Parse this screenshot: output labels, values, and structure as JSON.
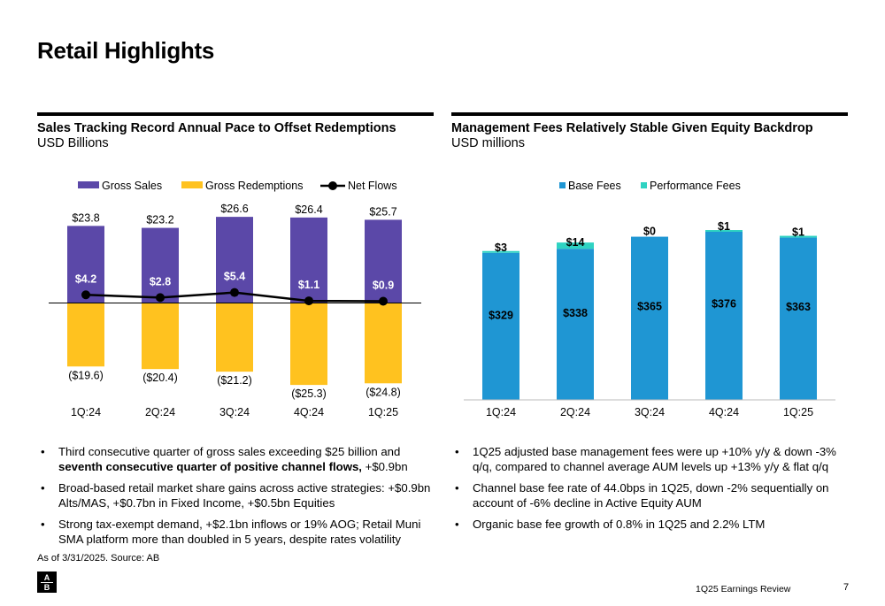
{
  "page_title": "Retail Highlights",
  "left_panel": {
    "title": "Sales Tracking Record Annual Pace to Offset Redemptions",
    "subtitle": "USD Billions",
    "bullets": [
      {
        "text": "Third consecutive quarter of gross sales exceeding $25 billion and ",
        "bold": "seventh consecutive quarter of positive channel flows,",
        "after": " +$0.9bn"
      },
      {
        "text": "Broad-based retail market share gains across active strategies: +$0.9bn Alts/MAS, +$0.7bn in Fixed Income, +$0.5bn Equities",
        "bold": "",
        "after": ""
      },
      {
        "text": "Strong tax-exempt demand, +$2.1bn inflows or 19% AOG; Retail Muni SMA platform more than doubled in 5 years, despite rates volatility",
        "bold": "",
        "after": ""
      }
    ]
  },
  "right_panel": {
    "title": "Management Fees Relatively Stable Given Equity Backdrop",
    "subtitle": "USD millions",
    "bullets": [
      {
        "text": "1Q25 adjusted base management fees were up +10% y/y & down -3% q/q, compared to channel average AUM levels up +13% y/y & flat q/q",
        "bold": "",
        "after": ""
      },
      {
        "text": "Channel base fee rate of 44.0bps in 1Q25, down -2% sequentially on account of -6% decline in Active Equity AUM",
        "bold": "",
        "after": ""
      },
      {
        "text": "Organic base fee growth of 0.8% in 1Q25 and 2.2% LTM",
        "bold": "",
        "after": ""
      }
    ]
  },
  "chart_data": [
    {
      "type": "bar",
      "categories": [
        "1Q:24",
        "2Q:24",
        "3Q:24",
        "4Q:24",
        "1Q:25"
      ],
      "series": [
        {
          "name": "Gross Sales",
          "values": [
            23.8,
            23.2,
            26.6,
            26.4,
            25.7
          ],
          "labels": [
            "$23.8",
            "$23.2",
            "$26.6",
            "$26.4",
            "$25.7"
          ],
          "color": "#5B48A8"
        },
        {
          "name": "Gross Redemptions",
          "values": [
            -19.6,
            -20.4,
            -21.2,
            -25.3,
            -24.8
          ],
          "labels": [
            "($19.6)",
            "($20.4)",
            "($21.2)",
            "($25.3)",
            "($24.8)"
          ],
          "color": "#FFC21F"
        },
        {
          "name": "Net Flows",
          "values": [
            4.2,
            2.8,
            5.4,
            1.1,
            0.9
          ],
          "labels": [
            "$4.2",
            "$2.8",
            "$5.4",
            "$1.1",
            "$0.9"
          ],
          "color": "#000000",
          "kind": "line"
        }
      ],
      "ylim": [
        -28,
        28
      ],
      "legend": "top"
    },
    {
      "type": "bar",
      "stacked": true,
      "categories": [
        "1Q:24",
        "2Q:24",
        "3Q:24",
        "4Q:24",
        "1Q:25"
      ],
      "series": [
        {
          "name": "Base Fees",
          "values": [
            329,
            338,
            365,
            376,
            363
          ],
          "labels": [
            "$329",
            "$338",
            "$365",
            "$376",
            "$363"
          ],
          "color": "#1F96D3"
        },
        {
          "name": "Performance Fees",
          "values": [
            3,
            14,
            0,
            1,
            1
          ],
          "labels": [
            "$3",
            "$14",
            "$0",
            "$1",
            "$1"
          ],
          "color": "#2FD3C2"
        }
      ],
      "ylim": [
        0,
        400
      ],
      "legend": "top"
    }
  ],
  "footnote": "As of 3/31/2025. Source: AB",
  "logo": {
    "top": "A",
    "bottom": "B"
  },
  "footer": {
    "text": "1Q25 Earnings Review",
    "page": "7"
  }
}
